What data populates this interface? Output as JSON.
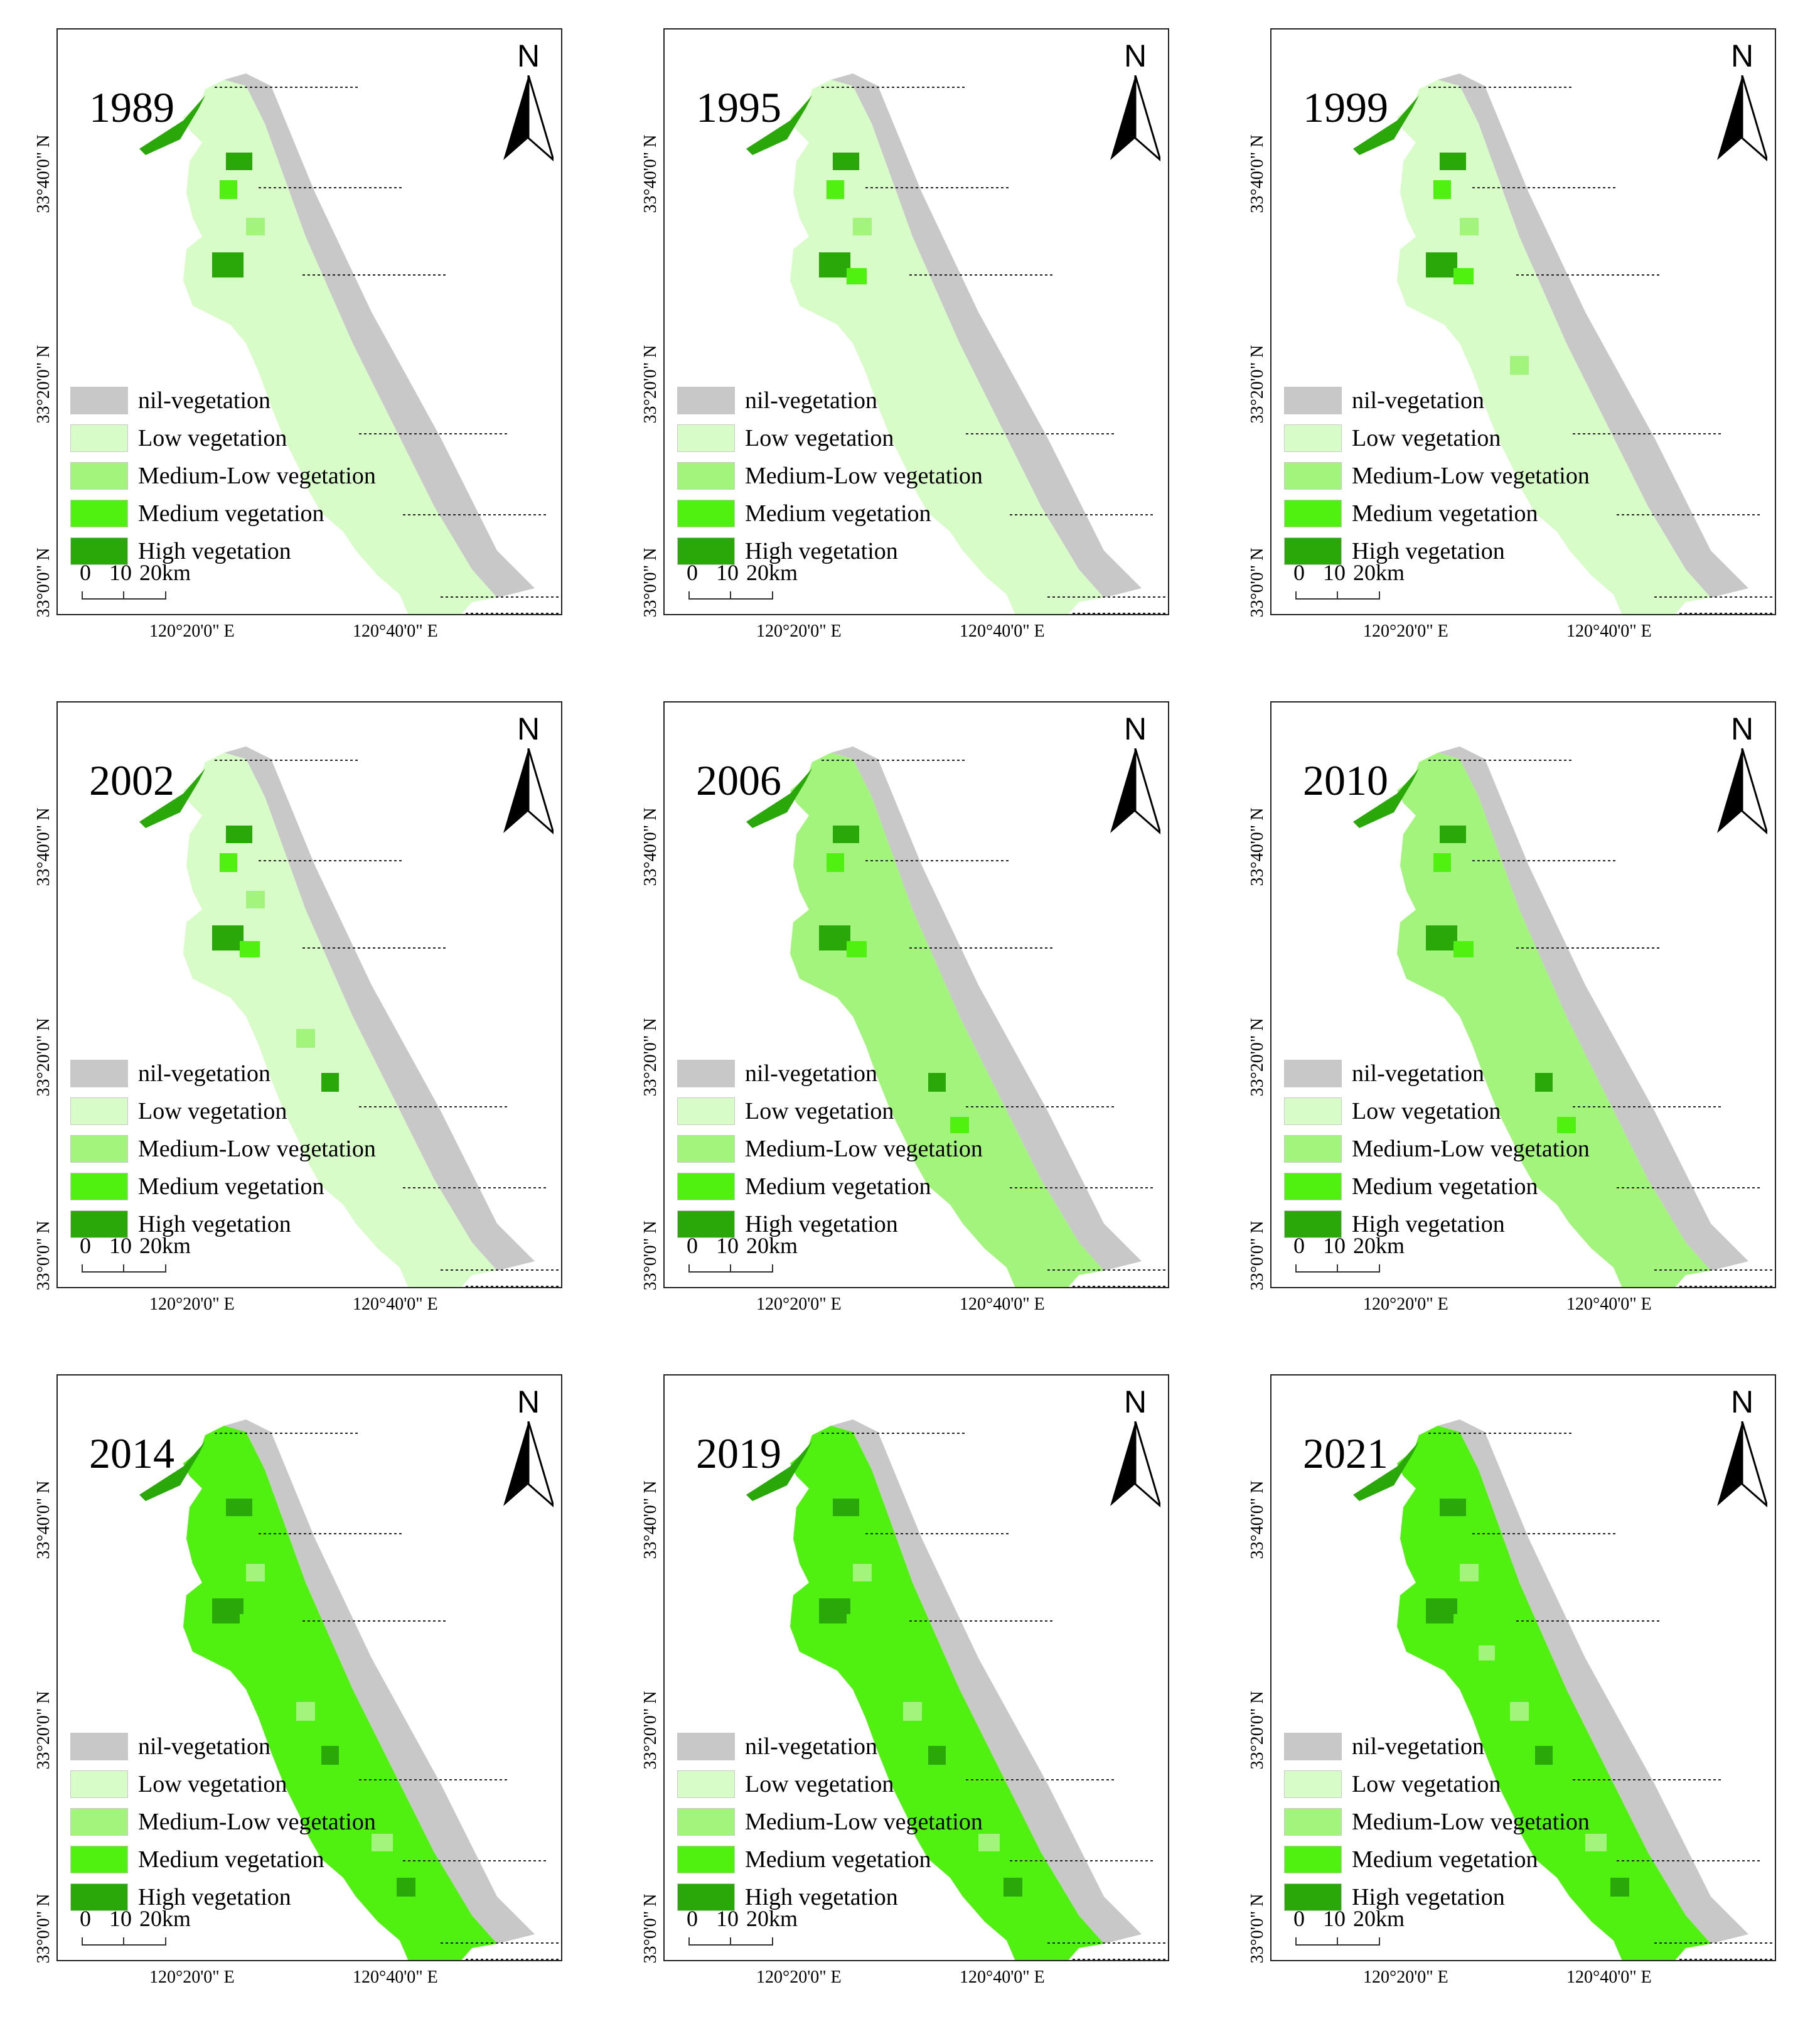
{
  "figure": {
    "north_label": "N",
    "legend": [
      {
        "label": "nil-vegetation",
        "color": "#c8c8c8"
      },
      {
        "label": "Low vegetation",
        "color": "#d8fcc8"
      },
      {
        "label": "Medium-Low vegetation",
        "color": "#a2f47c"
      },
      {
        "label": "Medium vegetation",
        "color": "#50f010"
      },
      {
        "label": "High vegetation",
        "color": "#2aa80a"
      }
    ],
    "scale_bar": {
      "ticks": [
        "0",
        "10",
        "20"
      ],
      "unit": "km"
    },
    "latitude_labels": [
      "33°40'0\" N",
      "33°20'0\" N",
      "33°0'0\" N"
    ],
    "longitude_labels": [
      "120°20'0\" E",
      "120°40'0\" E"
    ]
  },
  "panels": [
    {
      "year": "1989",
      "dominant_class": "Low vegetation"
    },
    {
      "year": "1995",
      "dominant_class": "Low vegetation"
    },
    {
      "year": "1999",
      "dominant_class": "Low vegetation"
    },
    {
      "year": "2002",
      "dominant_class": "Low vegetation"
    },
    {
      "year": "2006",
      "dominant_class": "Medium-Low vegetation"
    },
    {
      "year": "2010",
      "dominant_class": "Medium-Low vegetation"
    },
    {
      "year": "2014",
      "dominant_class": "Medium vegetation"
    },
    {
      "year": "2019",
      "dominant_class": "Medium vegetation"
    },
    {
      "year": "2021",
      "dominant_class": "Medium vegetation"
    }
  ]
}
